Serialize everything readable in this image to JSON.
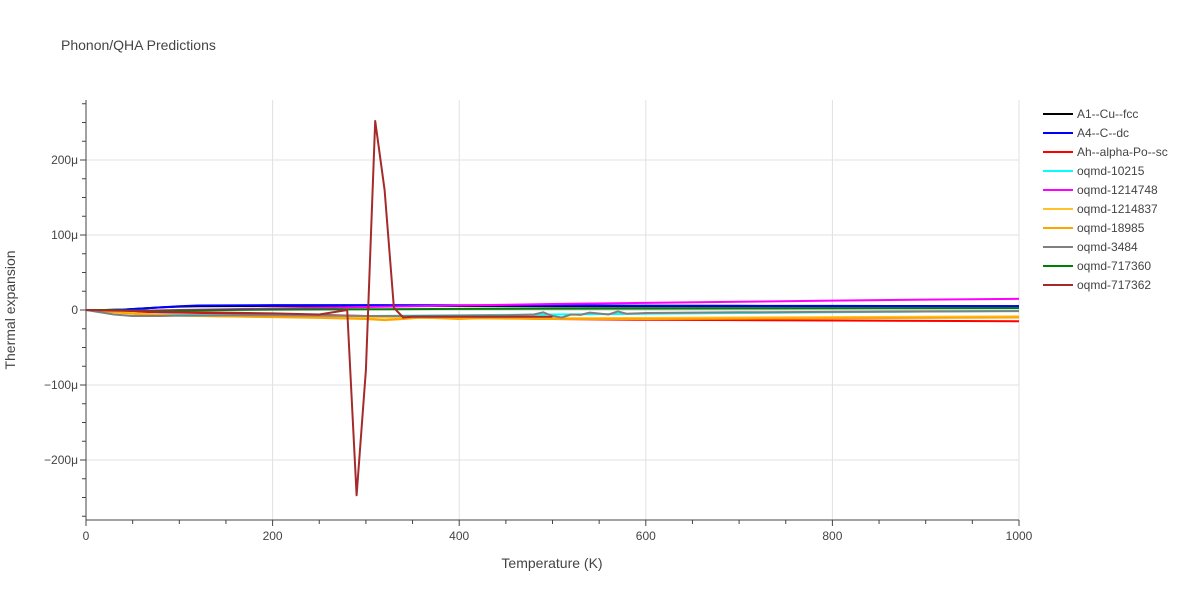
{
  "chart_data": {
    "type": "line",
    "title": "Phonon/QHA Predictions",
    "xlabel": "Temperature (K)",
    "ylabel": "Thermal expansion",
    "xlim": [
      0,
      1000
    ],
    "ylim": [
      -280,
      280
    ],
    "x_ticks": [
      0,
      200,
      400,
      600,
      800,
      1000
    ],
    "x_tick_labels": [
      "0",
      "200",
      "400",
      "600",
      "800",
      "1000"
    ],
    "y_ticks": [
      -200,
      -100,
      0,
      100,
      200
    ],
    "y_tick_labels": [
      "−200μ",
      "−100μ",
      "0",
      "100μ",
      "200μ"
    ],
    "y_unit_note": "values in units of 1e-6 (μ)",
    "grid": true,
    "legend_position": "right",
    "series": [
      {
        "name": "A1--Cu--fcc",
        "color": "#000000",
        "x": [
          0,
          20,
          40,
          60,
          80,
          100,
          120,
          150,
          200,
          300,
          400,
          500,
          600,
          700,
          800,
          900,
          1000
        ],
        "y": [
          0,
          0,
          0.5,
          2,
          3.5,
          4.5,
          5,
          5.2,
          5.5,
          5.5,
          5.3,
          5,
          5,
          5,
          5,
          5,
          5
        ]
      },
      {
        "name": "A4--C--dc",
        "color": "#0000ff",
        "x": [
          0,
          20,
          40,
          60,
          80,
          100,
          120,
          150,
          200,
          300,
          400,
          500,
          600,
          700,
          800,
          900,
          1000
        ],
        "y": [
          0,
          0,
          0.5,
          2,
          3.5,
          5,
          6,
          6.2,
          6.5,
          6.5,
          6.3,
          6,
          5.8,
          5.6,
          5.5,
          5.3,
          5.2
        ]
      },
      {
        "name": "Ah--alpha-Po--sc",
        "color": "#ff0000",
        "x": [
          0,
          20,
          40,
          60,
          80,
          100,
          150,
          200,
          250,
          300,
          400,
          500,
          600,
          700,
          800,
          900,
          1000
        ],
        "y": [
          0,
          -0.5,
          -1.5,
          -2.5,
          -3,
          -3.5,
          -4.5,
          -5.5,
          -6.5,
          -8,
          -10,
          -12,
          -13,
          -13.5,
          -14,
          -14.5,
          -15
        ]
      },
      {
        "name": "oqmd-10215",
        "color": "#00ffff",
        "x": [
          0,
          20,
          40,
          60,
          80,
          100,
          150,
          200,
          250,
          300,
          350,
          400,
          450,
          500,
          600,
          700,
          800,
          900,
          1000
        ],
        "y": [
          0,
          -1,
          -3,
          -5,
          -6,
          -6.5,
          -7,
          -7.5,
          -7.8,
          -8,
          -7.5,
          -7,
          -6.5,
          -6,
          -5,
          -4,
          -3,
          -2,
          -1
        ]
      },
      {
        "name": "oqmd-1214748",
        "color": "#ff00ff",
        "x": [
          0,
          20,
          40,
          60,
          80,
          100,
          150,
          200,
          300,
          400,
          500,
          600,
          700,
          800,
          900,
          1000
        ],
        "y": [
          0,
          -0.5,
          -1,
          -1,
          -0.5,
          0,
          1,
          2,
          4,
          6,
          8,
          9.5,
          11,
          12.5,
          13.8,
          15
        ]
      },
      {
        "name": "oqmd-1214837",
        "color": "#ffc125",
        "x": [
          0,
          20,
          40,
          60,
          80,
          100,
          150,
          200,
          300,
          400,
          500,
          600,
          700,
          800,
          900,
          1000
        ],
        "y": [
          0,
          -1.5,
          -3,
          -5,
          -6.5,
          -7.5,
          -8.5,
          -9,
          -10,
          -11,
          -11,
          -10.5,
          -10,
          -9.5,
          -9,
          -8.5
        ]
      },
      {
        "name": "oqmd-18985",
        "color": "#ffa500",
        "x": [
          0,
          20,
          40,
          60,
          80,
          100,
          150,
          200,
          250,
          300,
          320,
          340,
          360,
          380,
          400,
          420,
          450,
          500,
          600,
          700,
          800,
          900,
          1000
        ],
        "y": [
          0,
          -2,
          -4,
          -6,
          -7,
          -7.5,
          -8.5,
          -9.5,
          -10.5,
          -12,
          -13.5,
          -12,
          -10,
          -11,
          -12,
          -11,
          -11.5,
          -12,
          -12,
          -11.5,
          -11,
          -10.5,
          -10
        ]
      },
      {
        "name": "oqmd-3484",
        "color": "#808080",
        "x": [
          0,
          10,
          20,
          30,
          40,
          50,
          60,
          80,
          100,
          150,
          200,
          250,
          300,
          350,
          400,
          450,
          480,
          490,
          500,
          510,
          520,
          530,
          540,
          560,
          570,
          580,
          600,
          700,
          800,
          900,
          1000
        ],
        "y": [
          0,
          -2,
          -4,
          -6,
          -7,
          -8,
          -8,
          -8,
          -7.5,
          -7,
          -7,
          -7.5,
          -8,
          -8,
          -7.5,
          -7,
          -6,
          -3,
          -8,
          -10,
          -6,
          -6.5,
          -3.5,
          -6,
          -2,
          -5,
          -4,
          -3,
          -2.5,
          -2,
          -1.5
        ]
      },
      {
        "name": "oqmd-717360",
        "color": "#008000",
        "x": [
          0,
          20,
          40,
          60,
          80,
          100,
          150,
          200,
          300,
          400,
          500,
          600,
          700,
          800,
          900,
          1000
        ],
        "y": [
          0,
          0,
          -0.5,
          -1,
          -1,
          -0.5,
          0,
          0.5,
          1,
          1.5,
          1.8,
          2,
          2.2,
          2.4,
          2.5,
          2.6
        ]
      },
      {
        "name": "oqmd-717362",
        "color": "#a52a2a",
        "x": [
          0,
          20,
          40,
          60,
          80,
          100,
          150,
          200,
          250,
          280,
          290,
          300,
          310,
          320,
          330,
          340,
          350,
          400,
          450,
          500
        ],
        "y": [
          0,
          -0.5,
          -1,
          -1.5,
          -2,
          -2.5,
          -3.5,
          -4.5,
          -6,
          0,
          -247,
          -80,
          252,
          160,
          3,
          -10,
          -9,
          -9,
          -9,
          -9
        ]
      }
    ]
  }
}
